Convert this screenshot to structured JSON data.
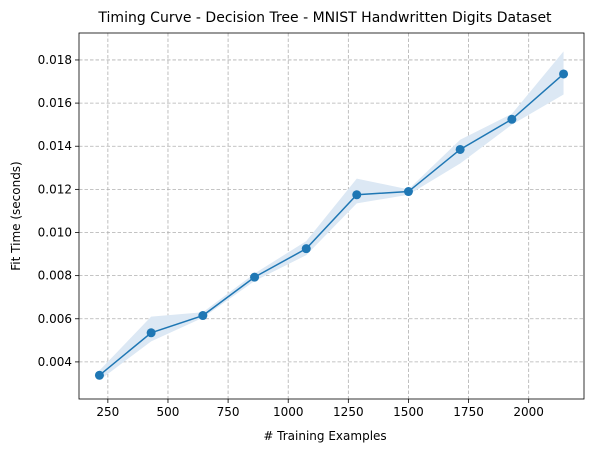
{
  "chart_data": {
    "type": "line",
    "title": "Timing Curve - Decision Tree - MNIST Handwritten Digits Dataset",
    "xlabel": "# Training Examples",
    "ylabel": "Fit Time (seconds)",
    "xlim": [
      130,
      2230
    ],
    "ylim": [
      0.00228,
      0.01925
    ],
    "xticks": [
      250,
      500,
      750,
      1000,
      1250,
      1500,
      1750,
      2000
    ],
    "xtick_labels": [
      "250",
      "500",
      "750",
      "1000",
      "1250",
      "1500",
      "1750",
      "2000"
    ],
    "yticks": [
      0.004,
      0.006,
      0.008,
      0.01,
      0.012,
      0.014,
      0.016,
      0.018
    ],
    "ytick_labels": [
      "0.004",
      "0.006",
      "0.008",
      "0.010",
      "0.012",
      "0.014",
      "0.016",
      "0.018"
    ],
    "grid": true,
    "series": [
      {
        "x": [
          215,
          430,
          645,
          860,
          1075,
          1285,
          1500,
          1715,
          1930,
          2145
        ],
        "y": [
          0.00338,
          0.00535,
          0.00615,
          0.00793,
          0.00925,
          0.01175,
          0.0119,
          0.01385,
          0.01525,
          0.01735
        ],
        "y_lower": [
          0.00315,
          0.00495,
          0.00605,
          0.00775,
          0.00895,
          0.01135,
          0.01175,
          0.0132,
          0.015,
          0.0164
        ],
        "y_upper": [
          0.0036,
          0.0061,
          0.0063,
          0.0081,
          0.0096,
          0.0125,
          0.012,
          0.0143,
          0.0155,
          0.0184
        ],
        "color": "#1f77b4",
        "band_color": "#dce8f4"
      }
    ]
  }
}
